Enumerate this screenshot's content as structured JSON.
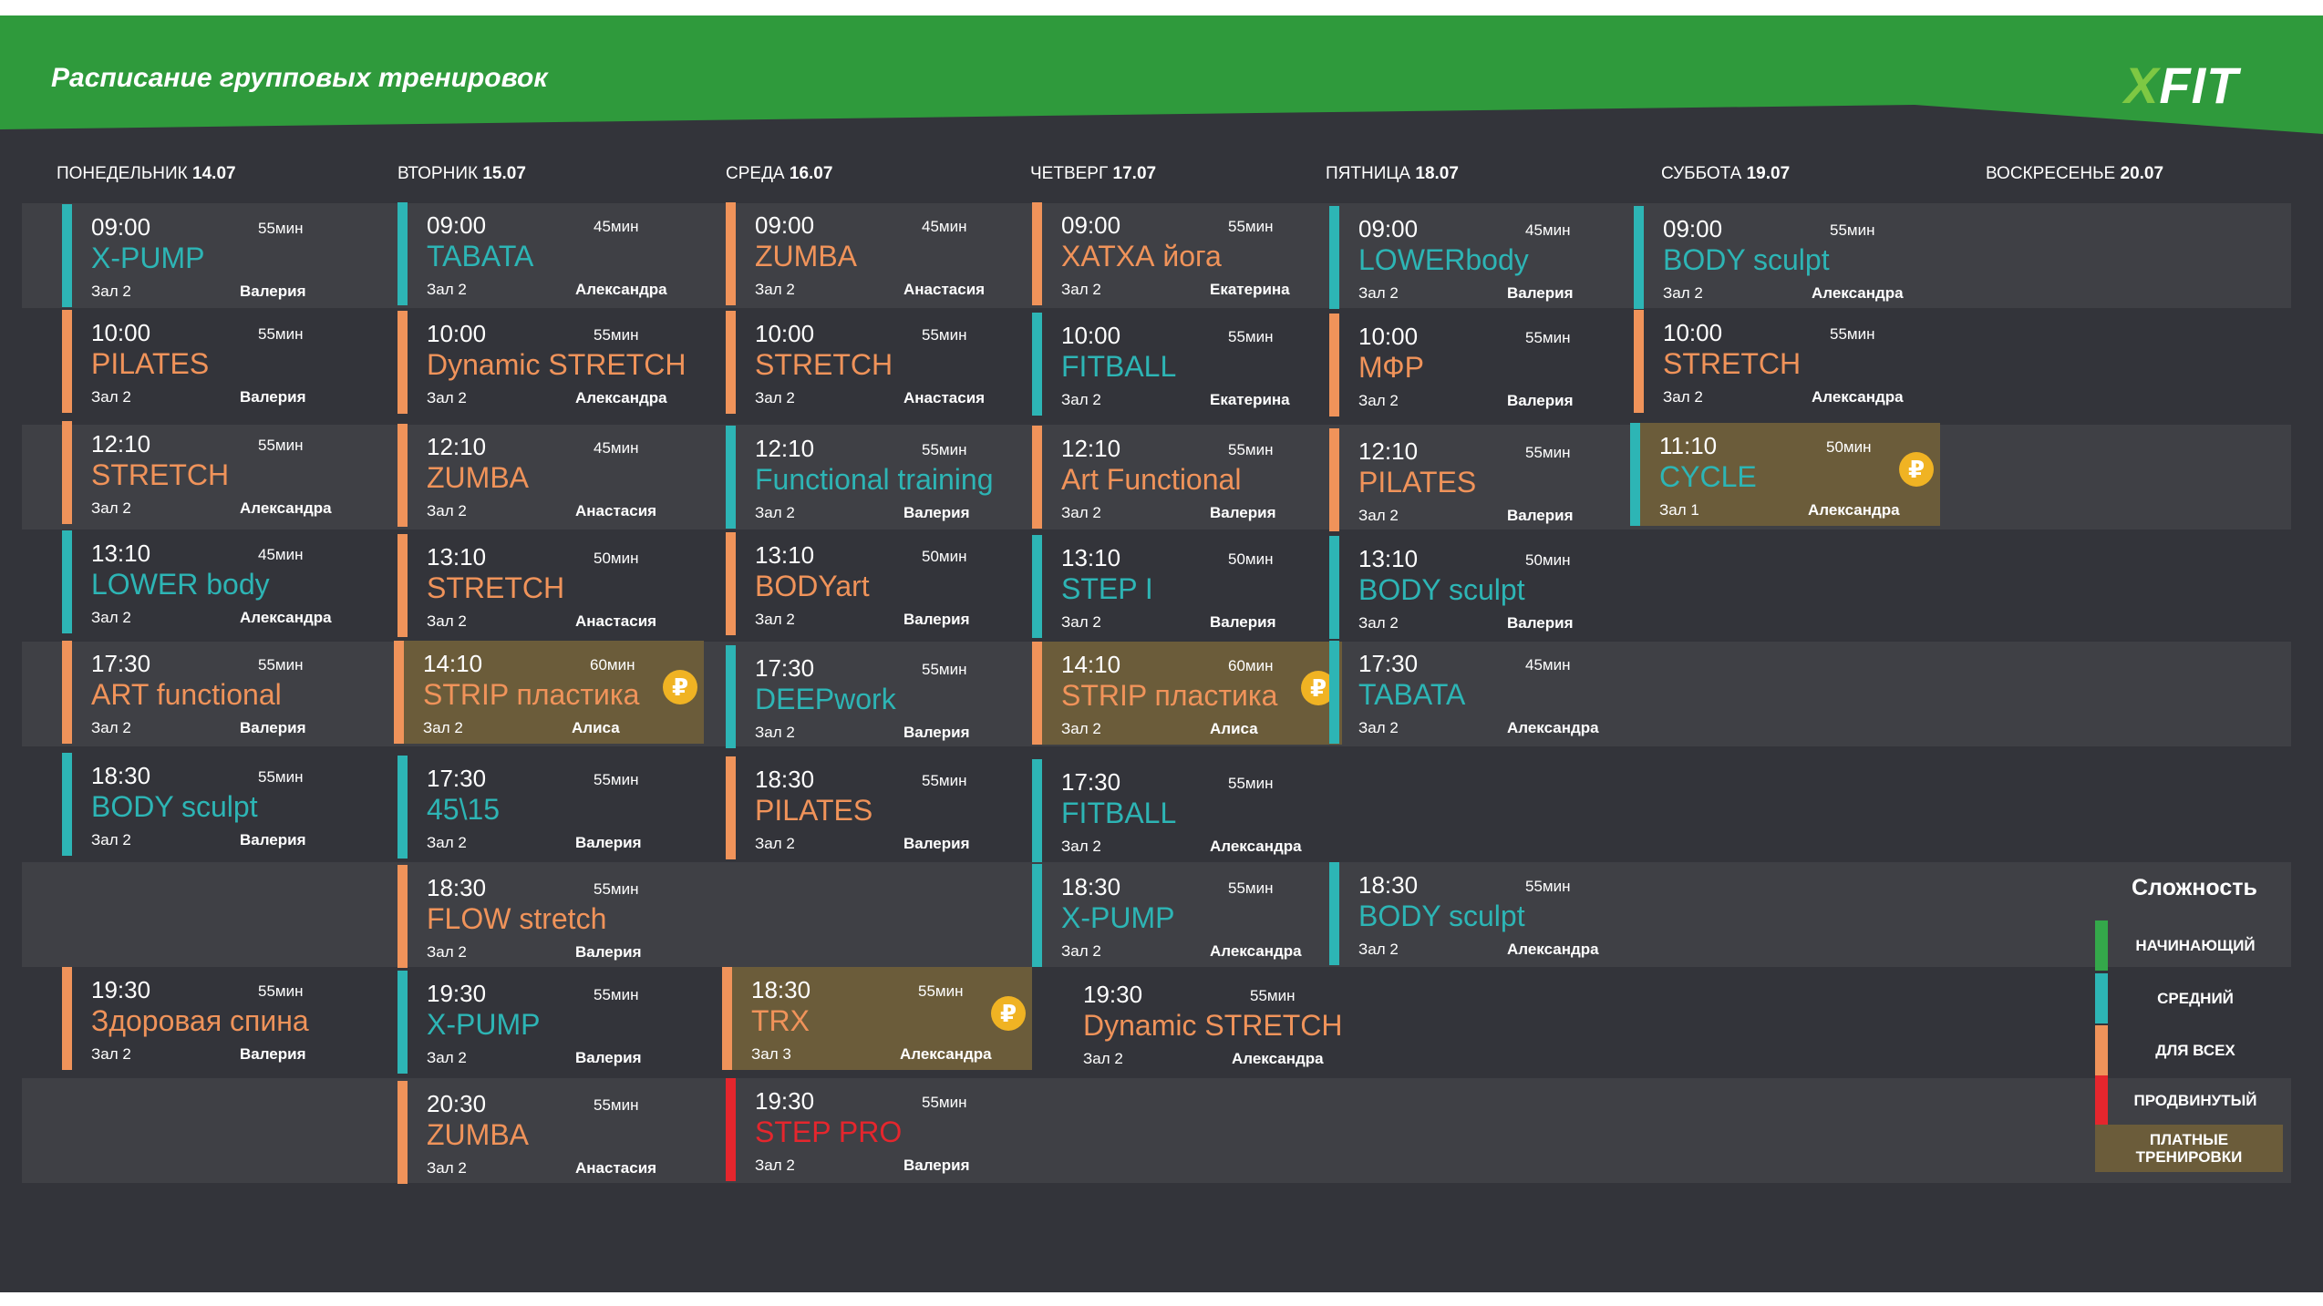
{
  "header": {
    "title": "Расписание групповых тренировок",
    "logo_x": "X",
    "logo_rest": "FIT",
    "bg_color": "#2f9a3c"
  },
  "colors": {
    "beginner": "#34a84a",
    "medium": "#2db5b5",
    "all": "#f0935a",
    "advanced": "#e5262d",
    "paid": "#6b5c3a",
    "coin": "#f0b323"
  },
  "days": [
    {
      "name": "ПОНЕДЕЛЬНИК",
      "date": "14.07"
    },
    {
      "name": "ВТОРНИК",
      "date": "15.07"
    },
    {
      "name": "СРЕДА",
      "date": "16.07"
    },
    {
      "name": "ЧЕТВЕРГ",
      "date": "17.07"
    },
    {
      "name": "ПЯТНИЦА",
      "date": "18.07"
    },
    {
      "name": "СУББОТА",
      "date": "19.07"
    },
    {
      "name": "ВОСКРЕСЕНЬЕ",
      "date": "20.07"
    }
  ],
  "coin_symbol": "₽",
  "classes": {
    "mon": [
      {
        "time": "09:00",
        "dur": "55мин",
        "name": "X-PUMP",
        "room": "Зал 2",
        "coach": "Валерия",
        "level": "medium"
      },
      {
        "time": "10:00",
        "dur": "55мин",
        "name": "PILATES",
        "room": "Зал 2",
        "coach": "Валерия",
        "level": "all"
      },
      {
        "time": "12:10",
        "dur": "55мин",
        "name": "STRETCH",
        "room": "Зал 2",
        "coach": "Александра",
        "level": "all"
      },
      {
        "time": "13:10",
        "dur": "45мин",
        "name": "LOWER body",
        "room": "Зал 2",
        "coach": "Александра",
        "level": "medium"
      },
      {
        "time": "17:30",
        "dur": "55мин",
        "name": "ART functional",
        "room": "Зал 2",
        "coach": "Валерия",
        "level": "all"
      },
      {
        "time": "18:30",
        "dur": "55мин",
        "name": "BODY sculpt",
        "room": "Зал 2",
        "coach": "Валерия",
        "level": "medium"
      },
      {
        "time": "19:30",
        "dur": "55мин",
        "name": "Здоровая спина",
        "room": "Зал 2",
        "coach": "Валерия",
        "level": "all"
      }
    ],
    "tue": [
      {
        "time": "09:00",
        "dur": "45мин",
        "name": "TABATA",
        "room": "Зал 2",
        "coach": "Александра",
        "level": "medium"
      },
      {
        "time": "10:00",
        "dur": "55мин",
        "name": "Dynamic STRETCH",
        "room": "Зал 2",
        "coach": "Александра",
        "level": "all"
      },
      {
        "time": "12:10",
        "dur": "45мин",
        "name": "ZUMBA",
        "room": "Зал 2",
        "coach": "Анастасия",
        "level": "all"
      },
      {
        "time": "13:10",
        "dur": "50мин",
        "name": "STRETCH",
        "room": "Зал 2",
        "coach": "Анастасия",
        "level": "all"
      },
      {
        "time": "14:10",
        "dur": "60мин",
        "name": "STRIP пластика",
        "room": "Зал 2",
        "coach": "Алиса",
        "level": "all"
      },
      {
        "time": "17:30",
        "dur": "55мин",
        "name": "45\\15",
        "room": "Зал 2",
        "coach": "Валерия",
        "level": "medium"
      },
      {
        "time": "18:30",
        "dur": "55мин",
        "name": "FLOW stretch",
        "room": "Зал 2",
        "coach": "Валерия",
        "level": "all"
      },
      {
        "time": "19:30",
        "dur": "55мин",
        "name": "X-PUMP",
        "room": "Зал 2",
        "coach": "Валерия",
        "level": "medium"
      },
      {
        "time": "20:30",
        "dur": "55мин",
        "name": "ZUMBA",
        "room": "Зал 2",
        "coach": "Анастасия",
        "level": "all"
      }
    ],
    "wed": [
      {
        "time": "09:00",
        "dur": "45мин",
        "name": "ZUMBA",
        "room": "Зал 2",
        "coach": "Анастасия",
        "level": "all"
      },
      {
        "time": "10:00",
        "dur": "55мин",
        "name": "STRETCH",
        "room": "Зал 2",
        "coach": "Анастасия",
        "level": "all"
      },
      {
        "time": "12:10",
        "dur": "55мин",
        "name": "Functional training",
        "room": "Зал 2",
        "coach": "Валерия",
        "level": "medium"
      },
      {
        "time": "13:10",
        "dur": "50мин",
        "name": "BODYart",
        "room": "Зал 2",
        "coach": "Валерия",
        "level": "all"
      },
      {
        "time": "17:30",
        "dur": "55мин",
        "name": "DEEPwork",
        "room": "Зал 2",
        "coach": "Валерия",
        "level": "medium"
      },
      {
        "time": "18:30",
        "dur": "55мин",
        "name": "PILATES",
        "room": "Зал 2",
        "coach": "Валерия",
        "level": "all"
      },
      {
        "time": "18:30",
        "dur": "55мин",
        "name": "TRX",
        "room": "Зал 3",
        "coach": "Александра",
        "level": "all"
      },
      {
        "time": "19:30",
        "dur": "55мин",
        "name": "STEP PRO",
        "room": "Зал 2",
        "coach": "Валерия",
        "level": "advanced"
      }
    ],
    "thu": [
      {
        "time": "09:00",
        "dur": "55мин",
        "name": "ХАТХА йога",
        "room": "Зал 2",
        "coach": "Екатерина",
        "level": "all"
      },
      {
        "time": "10:00",
        "dur": "55мин",
        "name": "FITBALL",
        "room": "Зал 2",
        "coach": "Екатерина",
        "level": "medium"
      },
      {
        "time": "12:10",
        "dur": "55мин",
        "name": "Art Functional",
        "room": "Зал 2",
        "coach": "Валерия",
        "level": "all"
      },
      {
        "time": "13:10",
        "dur": "50мин",
        "name": "STEP I",
        "room": "Зал 2",
        "coach": "Валерия",
        "level": "medium"
      },
      {
        "time": "14:10",
        "dur": "60мин",
        "name": "STRIP пластика",
        "room": "Зал 2",
        "coach": "Алиса",
        "level": "all"
      },
      {
        "time": "17:30",
        "dur": "55мин",
        "name": "FITBALL",
        "room": "Зал 2",
        "coach": "Александра",
        "level": "medium"
      },
      {
        "time": "18:30",
        "dur": "55мин",
        "name": "X-PUMP",
        "room": "Зал 2",
        "coach": "Александра",
        "level": "medium"
      },
      {
        "time": "19:30",
        "dur": "55мин",
        "name": "Dynamic STRETCH",
        "room": "Зал 2",
        "coach": "Александра",
        "level": "all"
      }
    ],
    "fri": [
      {
        "time": "09:00",
        "dur": "45мин",
        "name": "LOWERbody",
        "room": "Зал 2",
        "coach": "Валерия",
        "level": "medium"
      },
      {
        "time": "10:00",
        "dur": "55мин",
        "name": "МФР",
        "room": "Зал 2",
        "coach": "Валерия",
        "level": "all"
      },
      {
        "time": "12:10",
        "dur": "55мин",
        "name": "PILATES",
        "room": "Зал 2",
        "coach": "Валерия",
        "level": "all"
      },
      {
        "time": "13:10",
        "dur": "50мин",
        "name": "BODY sculpt",
        "room": "Зал 2",
        "coach": "Валерия",
        "level": "medium"
      },
      {
        "time": "17:30",
        "dur": "45мин",
        "name": "TABATA",
        "room": "Зал 2",
        "coach": "Александра",
        "level": "medium"
      },
      {
        "time": "18:30",
        "dur": "55мин",
        "name": "BODY sculpt",
        "room": "Зал 2",
        "coach": "Александра",
        "level": "medium"
      }
    ],
    "sat": [
      {
        "time": "09:00",
        "dur": "55мин",
        "name": "BODY sculpt",
        "room": "Зал 2",
        "coach": "Александра",
        "level": "medium"
      },
      {
        "time": "10:00",
        "dur": "55мин",
        "name": "STRETCH",
        "room": "Зал 2",
        "coach": "Александра",
        "level": "all"
      },
      {
        "time": "11:10",
        "dur": "50мин",
        "name": "CYCLE",
        "room": "Зал 1",
        "coach": "Александра",
        "level": "medium"
      }
    ]
  },
  "legend": {
    "title": "Сложность",
    "beginner": "НАЧИНАЮЩИЙ",
    "medium": "СРЕДНИЙ",
    "all": "ДЛЯ ВСЕХ",
    "advanced": "ПРОДВИНУТЫЙ",
    "paid_line1": "ПЛАТНЫЕ",
    "paid_line2": "ТРЕНИРОВКИ"
  }
}
